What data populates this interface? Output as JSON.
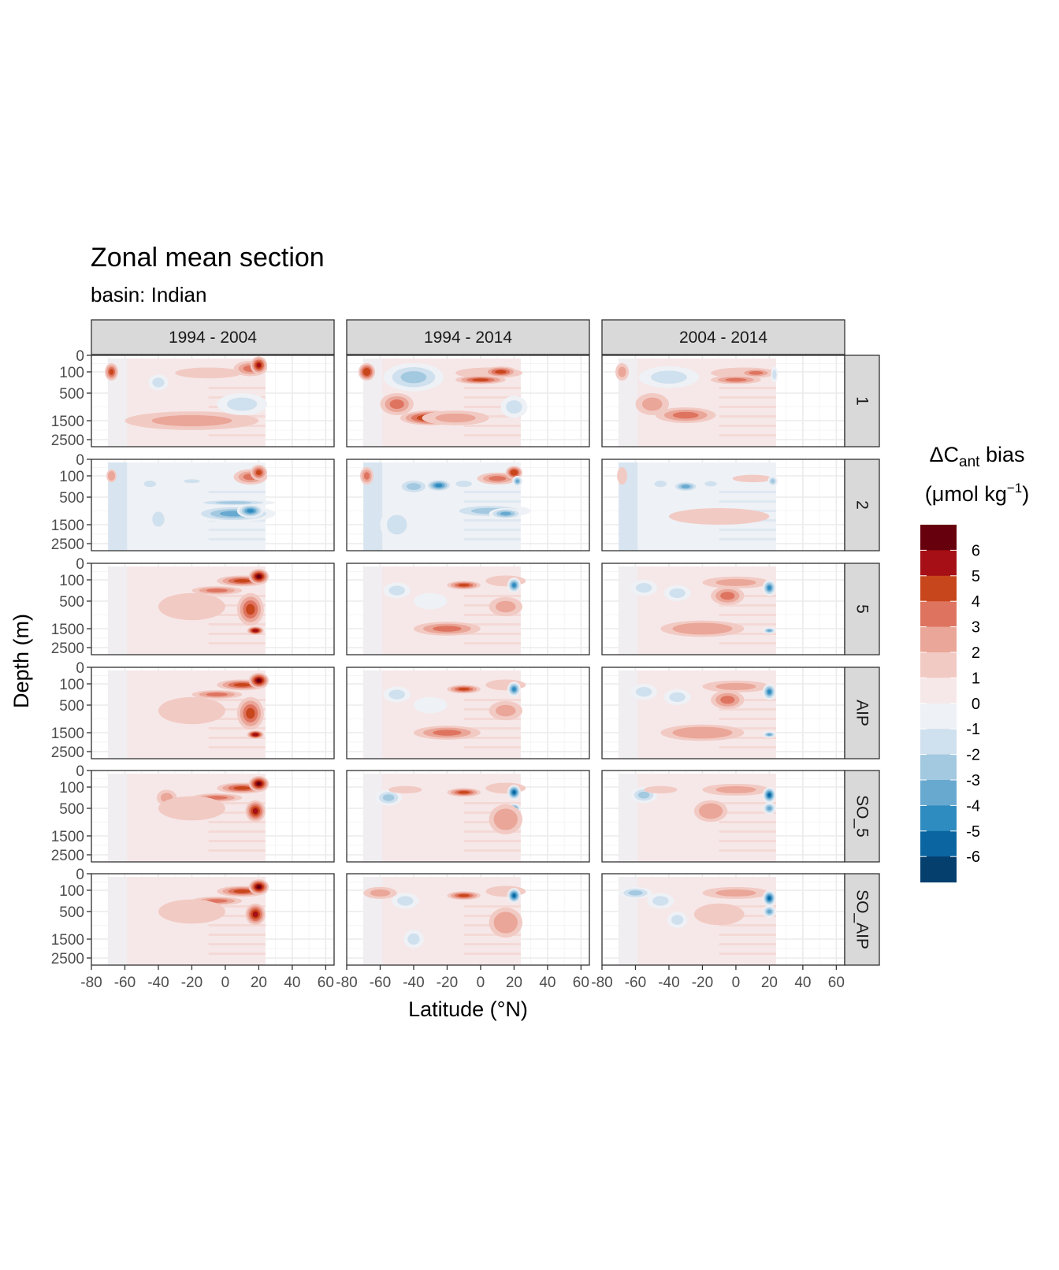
{
  "chart_data": {
    "type": "heatmap",
    "title": "Zonal mean section",
    "subtitle": "basin: Indian",
    "xlabel": "Latitude (°N)",
    "ylabel": "Depth (m)",
    "x_ticks": [
      -80,
      -60,
      -40,
      -20,
      0,
      20,
      40,
      60
    ],
    "y_ticks": [
      0,
      100,
      500,
      1500,
      2500
    ],
    "xlim": [
      -80,
      65
    ],
    "column_facets": [
      "1994 - 2004",
      "1994 - 2014",
      "2004 - 2014"
    ],
    "row_facets": [
      "1",
      "2",
      "5",
      "AIP",
      "SO_5",
      "SO_AIP"
    ],
    "data_extent_lat": [
      -70,
      24
    ],
    "legend": {
      "title_prefix": "ΔC",
      "title_sub": "ant",
      "title_suffix": " bias",
      "unit_open": "(μmol kg",
      "unit_sup": "−1",
      "unit_close": ")",
      "labels": [
        "6",
        "5",
        "4",
        "3",
        "2",
        "1",
        "0",
        "-1",
        "-2",
        "-3",
        "-4",
        "-5",
        "-6"
      ],
      "colors": [
        "#67000d",
        "#a50f15",
        "#c8461b",
        "#de7460",
        "#eaa698",
        "#f2cac4",
        "#f6e8e8",
        "#eef1f5",
        "#cfe0ee",
        "#a3c9e0",
        "#68a9d0",
        "#2e8cc0",
        "#0b65a0",
        "#053f6e"
      ]
    },
    "colors": {
      "strip_fill": "#d9d9d9",
      "panel_border": "#333333",
      "grid_major": "#ebebeb",
      "grid_minor": "#f5f5f5"
    },
    "features_note_levels": {
      "deep_red": 6,
      "red": 4,
      "light_red": 1.5,
      "neutral_pos": 0.5,
      "neutral_neg": -0.5,
      "light_blue": -1.5,
      "blue": -3,
      "deep_blue": -5.5
    }
  }
}
